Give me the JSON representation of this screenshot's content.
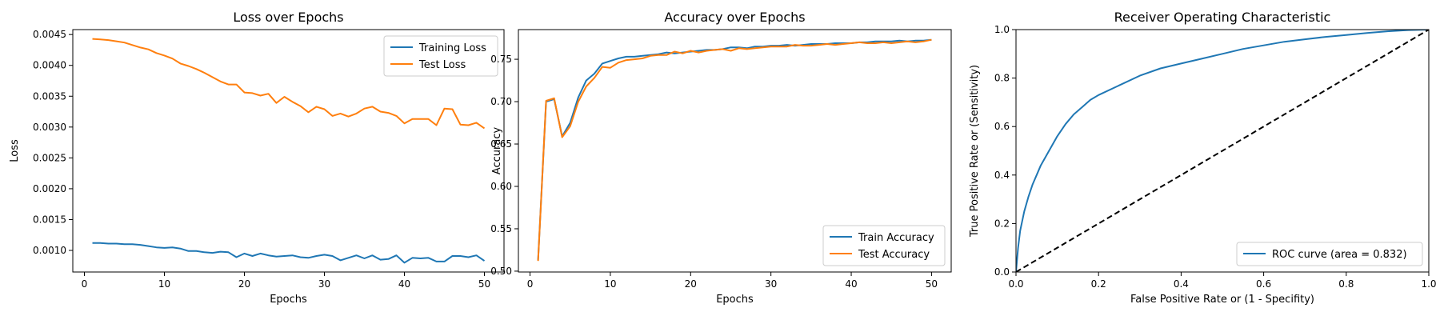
{
  "chart_data": [
    {
      "type": "line",
      "title": "Loss over Epochs",
      "xlabel": "Epochs",
      "ylabel": "Loss",
      "xlim": [
        -1.45,
        52.45
      ],
      "ylim": [
        0.00065,
        0.00458
      ],
      "xticks": [
        0,
        10,
        20,
        30,
        40,
        50
      ],
      "yticks": [
        0.001,
        0.0015,
        0.002,
        0.0025,
        0.003,
        0.0035,
        0.004,
        0.0045
      ],
      "ytick_labels": [
        "0.0010",
        "0.0015",
        "0.0020",
        "0.0025",
        "0.0030",
        "0.0035",
        "0.0040",
        "0.0045"
      ],
      "grid": false,
      "legend": "top-right",
      "x": [
        1,
        2,
        3,
        4,
        5,
        6,
        7,
        8,
        9,
        10,
        11,
        12,
        13,
        14,
        15,
        16,
        17,
        18,
        19,
        20,
        21,
        22,
        23,
        24,
        25,
        26,
        27,
        28,
        29,
        30,
        31,
        32,
        33,
        34,
        35,
        36,
        37,
        38,
        39,
        40,
        41,
        42,
        43,
        44,
        45,
        46,
        47,
        48,
        49,
        50
      ],
      "series": [
        {
          "name": "Training Loss",
          "color": "#1f77b4",
          "values": [
            0.00112,
            0.00112,
            0.00111,
            0.00111,
            0.0011,
            0.0011,
            0.00109,
            0.00107,
            0.00105,
            0.00104,
            0.00105,
            0.00103,
            0.00099,
            0.00099,
            0.00097,
            0.00096,
            0.00098,
            0.00097,
            0.00089,
            0.00095,
            0.00091,
            0.00095,
            0.00092,
            0.0009,
            0.00091,
            0.00092,
            0.00089,
            0.00088,
            0.00091,
            0.00093,
            0.00091,
            0.00084,
            0.00088,
            0.00092,
            0.00087,
            0.00092,
            0.00085,
            0.00086,
            0.00092,
            0.0008,
            0.00088,
            0.00087,
            0.00088,
            0.00082,
            0.00082,
            0.00091,
            0.00091,
            0.00089,
            0.00092,
            0.00083
          ]
        },
        {
          "name": "Test Loss",
          "color": "#ff7f0e",
          "values": [
            0.00443,
            0.00442,
            0.00441,
            0.00439,
            0.00437,
            0.00433,
            0.00429,
            0.00426,
            0.0042,
            0.00416,
            0.00411,
            0.00403,
            0.00399,
            0.00394,
            0.00388,
            0.00381,
            0.00374,
            0.00369,
            0.00369,
            0.00356,
            0.00355,
            0.00351,
            0.00354,
            0.00339,
            0.00349,
            0.00341,
            0.00334,
            0.00324,
            0.00333,
            0.00329,
            0.00318,
            0.00322,
            0.00317,
            0.00322,
            0.0033,
            0.00333,
            0.00325,
            0.00323,
            0.00318,
            0.00306,
            0.00313,
            0.00313,
            0.00313,
            0.00303,
            0.0033,
            0.00329,
            0.00304,
            0.00303,
            0.00307,
            0.00298
          ]
        }
      ]
    },
    {
      "type": "line",
      "title": "Accuracy over Epochs",
      "xlabel": "Epochs",
      "ylabel": "Accuracy",
      "xlim": [
        -1.45,
        52.45
      ],
      "ylim": [
        0.499,
        0.785
      ],
      "xticks": [
        0,
        10,
        20,
        30,
        40,
        50
      ],
      "yticks": [
        0.5,
        0.55,
        0.6,
        0.65,
        0.7,
        0.75
      ],
      "ytick_labels": [
        "0.50",
        "0.55",
        "0.60",
        "0.65",
        "0.70",
        "0.75"
      ],
      "grid": false,
      "legend": "bottom-right",
      "x": [
        1,
        2,
        3,
        4,
        5,
        6,
        7,
        8,
        9,
        10,
        11,
        12,
        13,
        14,
        15,
        16,
        17,
        18,
        19,
        20,
        21,
        22,
        23,
        24,
        25,
        26,
        27,
        28,
        29,
        30,
        31,
        32,
        33,
        34,
        35,
        36,
        37,
        38,
        39,
        40,
        41,
        42,
        43,
        44,
        45,
        46,
        47,
        48,
        49,
        50
      ],
      "series": [
        {
          "name": "Train Accuracy",
          "color": "#1f77b4",
          "values": [
            0.513,
            0.7,
            0.703,
            0.659,
            0.675,
            0.705,
            0.725,
            0.733,
            0.745,
            0.748,
            0.751,
            0.753,
            0.753,
            0.754,
            0.755,
            0.756,
            0.758,
            0.757,
            0.758,
            0.759,
            0.76,
            0.761,
            0.761,
            0.762,
            0.764,
            0.764,
            0.763,
            0.765,
            0.765,
            0.766,
            0.766,
            0.767,
            0.766,
            0.767,
            0.768,
            0.768,
            0.768,
            0.769,
            0.769,
            0.769,
            0.77,
            0.77,
            0.771,
            0.771,
            0.771,
            0.772,
            0.771,
            0.772,
            0.772,
            0.773
          ]
        },
        {
          "name": "Test Accuracy",
          "color": "#ff7f0e",
          "values": [
            0.512,
            0.701,
            0.704,
            0.658,
            0.671,
            0.7,
            0.718,
            0.728,
            0.741,
            0.74,
            0.746,
            0.749,
            0.75,
            0.751,
            0.754,
            0.755,
            0.755,
            0.759,
            0.757,
            0.76,
            0.758,
            0.76,
            0.761,
            0.762,
            0.76,
            0.763,
            0.762,
            0.763,
            0.764,
            0.765,
            0.765,
            0.765,
            0.767,
            0.766,
            0.766,
            0.767,
            0.768,
            0.767,
            0.768,
            0.769,
            0.77,
            0.769,
            0.769,
            0.77,
            0.769,
            0.77,
            0.771,
            0.77,
            0.771,
            0.773
          ]
        }
      ]
    },
    {
      "type": "line",
      "title": "Receiver Operating Characteristic",
      "xlabel": "False Positive Rate or (1 - Specifity)",
      "ylabel": "True Positive Rate or (Sensitivity)",
      "xlim": [
        0.0,
        1.0
      ],
      "ylim": [
        0.0,
        1.0
      ],
      "xticks": [
        0.0,
        0.2,
        0.4,
        0.6,
        0.8,
        1.0
      ],
      "yticks": [
        0.0,
        0.2,
        0.4,
        0.6,
        0.8,
        1.0
      ],
      "xtick_labels": [
        "0.0",
        "0.2",
        "0.4",
        "0.6",
        "0.8",
        "1.0"
      ],
      "ytick_labels": [
        "0.0",
        "0.2",
        "0.4",
        "0.6",
        "0.8",
        "1.0"
      ],
      "grid": false,
      "legend": "bottom-right",
      "series": [
        {
          "name": "ROC curve (area = 0.832)",
          "color": "#1f77b4",
          "x": [
            0.0,
            0.005,
            0.01,
            0.02,
            0.03,
            0.04,
            0.05,
            0.06,
            0.08,
            0.1,
            0.12,
            0.14,
            0.16,
            0.18,
            0.2,
            0.25,
            0.3,
            0.35,
            0.4,
            0.45,
            0.5,
            0.55,
            0.6,
            0.65,
            0.7,
            0.75,
            0.8,
            0.85,
            0.9,
            0.95,
            1.0
          ],
          "y": [
            0.0,
            0.1,
            0.17,
            0.25,
            0.31,
            0.36,
            0.4,
            0.44,
            0.5,
            0.56,
            0.61,
            0.65,
            0.68,
            0.71,
            0.73,
            0.77,
            0.81,
            0.84,
            0.86,
            0.88,
            0.9,
            0.92,
            0.935,
            0.95,
            0.96,
            0.97,
            0.978,
            0.986,
            0.993,
            0.998,
            1.0
          ]
        },
        {
          "name": "",
          "color": "#000000",
          "dashed": true,
          "x": [
            0.0,
            1.0
          ],
          "y": [
            0.0,
            1.0
          ]
        }
      ]
    }
  ]
}
